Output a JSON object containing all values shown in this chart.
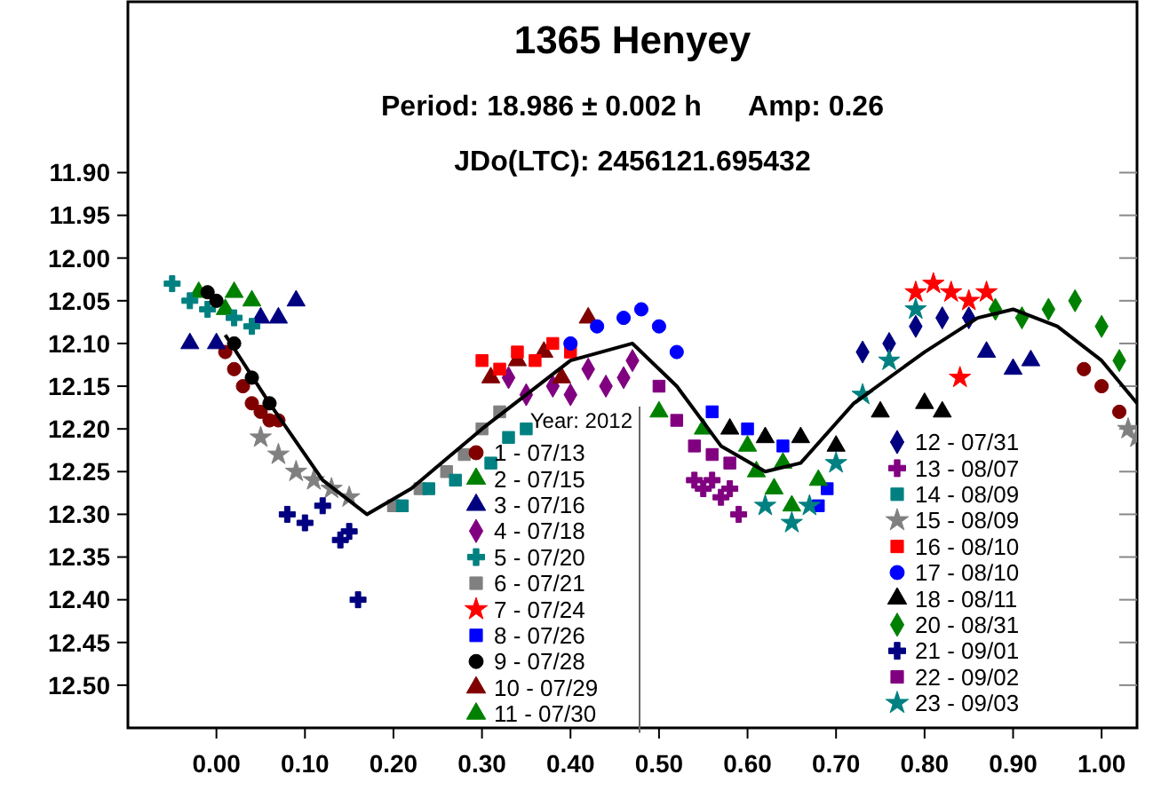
{
  "chart_data": {
    "type": "scatter",
    "title": "1365 Henyey",
    "subtitle": "Period: 18.986 ± 0.002 h      Amp: 0.26",
    "annotations": [
      "JDo(LTC): 2456121.695432"
    ],
    "legend_title": "Year: 2012",
    "legend": "bottom",
    "grid": false,
    "xlim": [
      -0.1,
      1.04
    ],
    "ylim": [
      12.55,
      11.7
    ],
    "xticks": [
      {
        "value": 0,
        "label": "0.00"
      },
      {
        "value": 0.1,
        "label": "0.10"
      },
      {
        "value": 0.2,
        "label": "0.20"
      },
      {
        "value": 0.3,
        "label": "0.30"
      },
      {
        "value": 0.4,
        "label": "0.40"
      },
      {
        "value": 0.5,
        "label": "0.50"
      },
      {
        "value": 0.6,
        "label": "0.60"
      },
      {
        "value": 0.7,
        "label": "0.70"
      },
      {
        "value": 0.8,
        "label": "0.80"
      },
      {
        "value": 0.9,
        "label": "0.90"
      },
      {
        "value": 1,
        "label": "1.00"
      }
    ],
    "yticks": [
      {
        "value": 11.9,
        "label": "11.90"
      },
      11.95,
      {
        "value": 12,
        "label": "12.00"
      },
      12.05,
      {
        "value": 12.1,
        "label": "12.10"
      },
      12.15,
      {
        "value": 12.2,
        "label": "12.20"
      },
      12.25,
      {
        "value": 12.3,
        "label": "12.30"
      },
      12.35,
      {
        "value": 12.4,
        "label": "12.40"
      },
      12.45,
      {
        "value": 12.5,
        "label": "12.50"
      }
    ],
    "series": [
      {
        "name": "1 - 07/13",
        "color": "#800000",
        "marker": "circle",
        "x": [
          0.01,
          0.02,
          0.03,
          0.04,
          0.05,
          0.06,
          0.07,
          0.98,
          1.0,
          1.02
        ],
        "values": [
          12.11,
          12.13,
          12.15,
          12.17,
          12.18,
          12.19,
          12.19,
          12.13,
          12.15,
          12.18
        ]
      },
      {
        "name": "2 - 07/15",
        "color": "#008000",
        "marker": "triangle",
        "x": [
          -0.02,
          0.01,
          0.02,
          0.04,
          0.61,
          0.63,
          0.65
        ],
        "values": [
          12.04,
          12.06,
          12.04,
          12.05,
          12.25,
          12.27,
          12.29
        ]
      },
      {
        "name": "3 - 07/16",
        "color": "#000080",
        "marker": "triangle",
        "x": [
          -0.03,
          0.0,
          0.05,
          0.07,
          0.09,
          0.87,
          0.9,
          0.92
        ],
        "values": [
          12.1,
          12.1,
          12.07,
          12.07,
          12.05,
          12.11,
          12.13,
          12.12
        ]
      },
      {
        "name": "4 - 07/18",
        "color": "#800080",
        "marker": "diamond",
        "x": [
          0.33,
          0.35,
          0.38,
          0.4,
          0.42,
          0.44,
          0.46,
          0.47
        ],
        "values": [
          12.14,
          12.16,
          12.15,
          12.16,
          12.13,
          12.15,
          12.14,
          12.12
        ]
      },
      {
        "name": "5 - 07/20",
        "color": "#008080",
        "marker": "cross",
        "x": [
          -0.05,
          -0.03,
          -0.01,
          0.02,
          0.04
        ],
        "values": [
          12.03,
          12.05,
          12.06,
          12.07,
          12.08
        ]
      },
      {
        "name": "6 - 07/21",
        "color": "#808080",
        "marker": "square",
        "x": [
          0.2,
          0.23,
          0.26,
          0.28,
          0.3,
          0.32
        ],
        "values": [
          12.29,
          12.27,
          12.25,
          12.23,
          12.2,
          12.18
        ]
      },
      {
        "name": "7 - 07/24",
        "color": "#ff0000",
        "marker": "star",
        "x": [
          0.79,
          0.81,
          0.83,
          0.85,
          0.87,
          0.84
        ],
        "values": [
          12.04,
          12.03,
          12.04,
          12.05,
          12.04,
          12.14
        ]
      },
      {
        "name": "8 - 07/26",
        "color": "#0000ff",
        "marker": "square",
        "x": [
          0.56,
          0.6,
          0.64,
          0.68,
          0.69
        ],
        "values": [
          12.18,
          12.2,
          12.22,
          12.29,
          12.27
        ]
      },
      {
        "name": "9 - 07/28",
        "color": "#000000",
        "marker": "circle",
        "x": [
          -0.01,
          0.0,
          0.02,
          0.04,
          0.06
        ],
        "values": [
          12.04,
          12.05,
          12.1,
          12.14,
          12.17
        ]
      },
      {
        "name": "10 - 07/29",
        "color": "#800000",
        "marker": "triangle",
        "x": [
          0.31,
          0.34,
          0.37,
          0.39,
          0.42
        ],
        "values": [
          12.14,
          12.12,
          12.11,
          12.14,
          12.07
        ]
      },
      {
        "name": "11 - 07/30",
        "color": "#008000",
        "marker": "triangle",
        "x": [
          0.5,
          0.55,
          0.6,
          0.64,
          0.68
        ],
        "values": [
          12.18,
          12.2,
          12.22,
          12.24,
          12.26
        ]
      },
      {
        "name": "12 - 07/31",
        "color": "#000080",
        "marker": "diamond",
        "x": [
          0.73,
          0.76,
          0.79,
          0.82,
          0.85
        ],
        "values": [
          12.11,
          12.1,
          12.08,
          12.07,
          12.07
        ]
      },
      {
        "name": "13 - 08/07",
        "color": "#800080",
        "marker": "cross",
        "x": [
          0.54,
          0.55,
          0.56,
          0.57,
          0.58,
          0.59
        ],
        "values": [
          12.26,
          12.27,
          12.26,
          12.28,
          12.27,
          12.3
        ]
      },
      {
        "name": "14 - 08/09",
        "color": "#008080",
        "marker": "square",
        "x": [
          0.21,
          0.24,
          0.27,
          0.31,
          0.33,
          0.35
        ],
        "values": [
          12.29,
          12.27,
          12.26,
          12.24,
          12.21,
          12.2
        ]
      },
      {
        "name": "15 - 08/09",
        "color": "#808080",
        "marker": "star",
        "x": [
          0.05,
          0.07,
          0.09,
          0.11,
          0.13,
          0.15,
          1.03,
          1.04
        ],
        "values": [
          12.21,
          12.23,
          12.25,
          12.26,
          12.27,
          12.28,
          12.2,
          12.21
        ]
      },
      {
        "name": "16 - 08/10",
        "color": "#ff0000",
        "marker": "square",
        "x": [
          0.3,
          0.32,
          0.34,
          0.36,
          0.38,
          0.4
        ],
        "values": [
          12.12,
          12.13,
          12.11,
          12.12,
          12.1,
          12.11
        ]
      },
      {
        "name": "17 - 08/10",
        "color": "#0000ff",
        "marker": "circle",
        "x": [
          0.4,
          0.43,
          0.46,
          0.48,
          0.5,
          0.52
        ],
        "values": [
          12.1,
          12.08,
          12.07,
          12.06,
          12.08,
          12.11
        ]
      },
      {
        "name": "18 - 08/11",
        "color": "#000000",
        "marker": "triangle",
        "x": [
          0.58,
          0.62,
          0.66,
          0.7,
          0.75,
          0.8,
          0.82
        ],
        "values": [
          12.2,
          12.21,
          12.21,
          12.22,
          12.18,
          12.17,
          12.18
        ]
      },
      {
        "name": "20 - 08/31",
        "color": "#008000",
        "marker": "diamond",
        "x": [
          0.88,
          0.91,
          0.94,
          0.97,
          1.0,
          1.02
        ],
        "values": [
          12.06,
          12.07,
          12.06,
          12.05,
          12.08,
          12.12
        ]
      },
      {
        "name": "21 - 09/01",
        "color": "#000080",
        "marker": "cross",
        "x": [
          0.08,
          0.1,
          0.12,
          0.14,
          0.15,
          0.16
        ],
        "values": [
          12.3,
          12.31,
          12.29,
          12.33,
          12.32,
          12.4
        ]
      },
      {
        "name": "22 - 09/02",
        "color": "#800080",
        "marker": "square",
        "x": [
          0.5,
          0.52,
          0.54,
          0.56,
          0.58
        ],
        "values": [
          12.15,
          12.19,
          12.22,
          12.23,
          12.24
        ]
      },
      {
        "name": "23 - 09/03",
        "color": "#008080",
        "marker": "star",
        "x": [
          0.62,
          0.65,
          0.67,
          0.7,
          0.73,
          0.76,
          0.79
        ],
        "values": [
          12.29,
          12.31,
          12.29,
          12.24,
          12.16,
          12.12,
          12.06
        ]
      },
      {
        "type": "line",
        "color": "#000000",
        "marker": "none",
        "x": [
          0.01,
          0.06,
          0.12,
          0.17,
          0.22,
          0.3,
          0.4,
          0.47,
          0.52,
          0.57,
          0.62,
          0.66,
          0.72,
          0.8,
          0.86,
          0.9,
          0.95,
          1.0,
          1.04
        ],
        "values": [
          12.09,
          12.17,
          12.26,
          12.3,
          12.27,
          12.2,
          12.12,
          12.1,
          12.15,
          12.22,
          12.25,
          12.24,
          12.17,
          12.11,
          12.07,
          12.06,
          12.08,
          12.12,
          12.17
        ]
      }
    ]
  }
}
